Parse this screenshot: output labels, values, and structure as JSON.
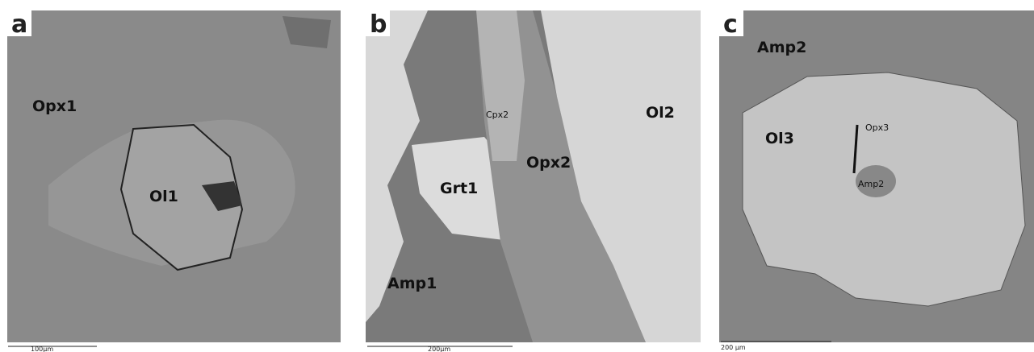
{
  "panels": [
    {
      "letter": "a",
      "labels": [
        "Opx1",
        "Ol1"
      ],
      "scale_bar": "100µm"
    },
    {
      "letter": "b",
      "labels": [
        "Cpx2",
        "Ol2",
        "Opx2",
        "Grt1",
        "Amp1"
      ],
      "scale_bar": "200µm"
    },
    {
      "letter": "c",
      "labels": [
        "Amp2",
        "Ol3",
        "Opx3",
        "Amp2"
      ],
      "scale_bar": "200 µm"
    }
  ]
}
